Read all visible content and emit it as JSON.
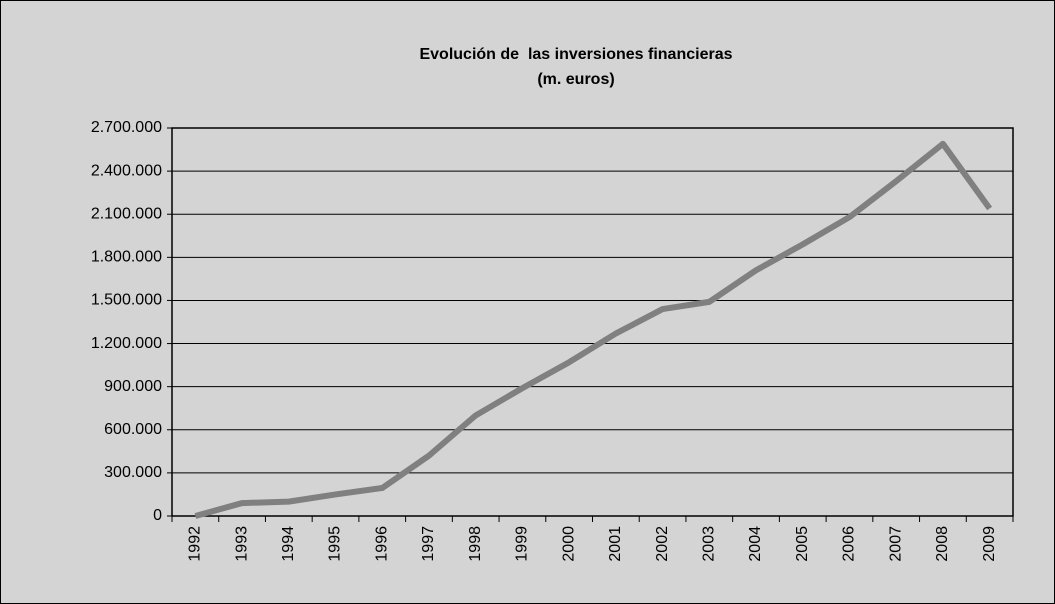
{
  "chart_data": {
    "type": "line",
    "title": "Evolución de  las inversiones financieras",
    "subtitle": "(m. euros)",
    "categories": [
      "1992",
      "1993",
      "1994",
      "1995",
      "1996",
      "1997",
      "1998",
      "1999",
      "2000",
      "2001",
      "2002",
      "2003",
      "2004",
      "2005",
      "2006",
      "2007",
      "2008",
      "2009"
    ],
    "series": [
      {
        "name": "Inversiones financieras",
        "color": "#808080",
        "values": [
          0,
          90000,
          100000,
          150000,
          195000,
          420000,
          700000,
          890000,
          1070000,
          1270000,
          1440000,
          1490000,
          1710000,
          1890000,
          2080000,
          2330000,
          2590000,
          2140000
        ]
      }
    ],
    "ylim": [
      0,
      2700000
    ],
    "yticks": [
      0,
      {
        "value": 300000,
        "label": "300.000"
      },
      {
        "value": 600000,
        "label": "600.000"
      },
      {
        "value": 900000,
        "label": "900.000"
      },
      {
        "value": 1200000,
        "label": "1.200.000"
      },
      {
        "value": 1500000,
        "label": "1.500.000"
      },
      {
        "value": 1800000,
        "label": "1.800.000"
      },
      {
        "value": 2100000,
        "label": "2.100.000"
      },
      {
        "value": 2400000,
        "label": "2.400.000"
      },
      {
        "value": 2700000,
        "label": "2.700.000"
      }
    ],
    "grid": true
  }
}
